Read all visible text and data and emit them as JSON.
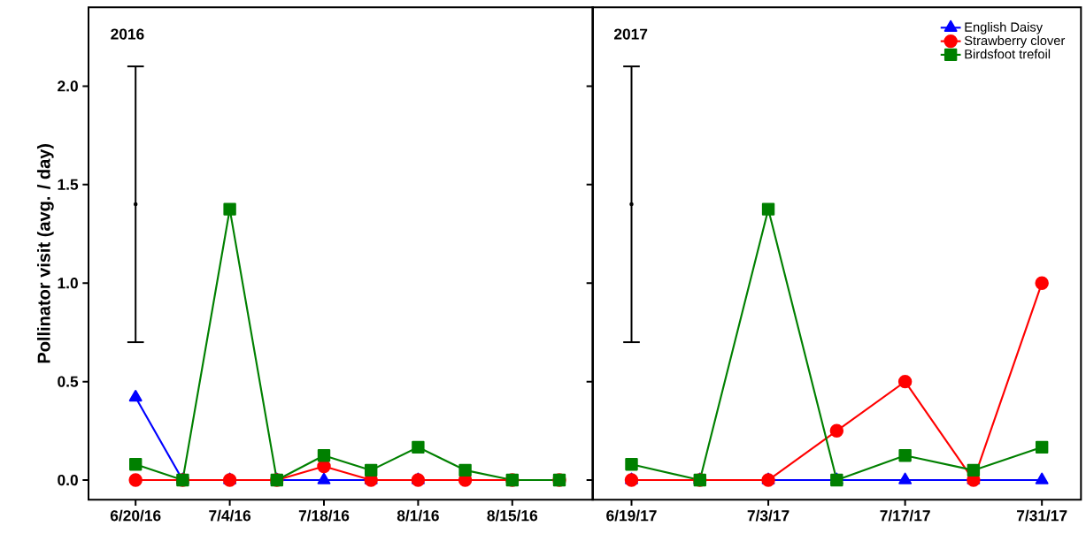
{
  "chart_data": [
    {
      "type": "line",
      "ylabel": "Pollinator visit (avg. / day)",
      "annotations": [
        "2016"
      ],
      "xlim": [
        "2016-06-13",
        "2016-08-27"
      ],
      "ylim": [
        -0.1,
        2.4
      ],
      "xticks": [
        {
          "value": "2016-06-20",
          "label": "6/20/16"
        },
        {
          "value": "2016-07-04",
          "label": "7/4/16"
        },
        {
          "value": "2016-07-18",
          "label": "7/18/16"
        },
        {
          "value": "2016-08-01",
          "label": "8/1/16"
        },
        {
          "value": "2016-08-15",
          "label": "8/15/16"
        }
      ],
      "yticks": [
        {
          "value": 0,
          "label": "0.0"
        },
        {
          "value": 0.5,
          "label": "0.5"
        },
        {
          "value": 1.0,
          "label": "1.0"
        },
        {
          "value": 1.5,
          "label": "1.5"
        },
        {
          "value": 2.0,
          "label": "2.0"
        }
      ],
      "x": [
        "2016-06-20",
        "2016-06-27",
        "2016-07-04",
        "2016-07-11",
        "2016-07-18",
        "2016-07-25",
        "2016-08-01",
        "2016-08-08",
        "2016-08-15",
        "2016-08-22"
      ],
      "grid": false,
      "legend": false,
      "series": [
        {
          "color": "#0000ff",
          "marker": "triangle",
          "values": [
            0.42,
            0,
            0,
            0,
            0,
            0,
            0,
            null,
            null,
            null
          ]
        },
        {
          "color": "#ff0000",
          "marker": "circle",
          "values": [
            0,
            0,
            0,
            0,
            0.07,
            0,
            0,
            0,
            0,
            0
          ]
        },
        {
          "color": "#008000",
          "marker": "square",
          "values": [
            0.08,
            0,
            1.375,
            0,
            0.125,
            0.05,
            0.167,
            0.05,
            0,
            0
          ]
        },
        {
          "color": "#000000",
          "marker": "none",
          "x": [
            "2016-06-20"
          ],
          "values": [
            1.4
          ],
          "errors": [
            0.7
          ]
        }
      ]
    },
    {
      "type": "line",
      "annotations": [
        "2017"
      ],
      "tick_labels": "x",
      "xlim": [
        "2017-06-15",
        "2017-08-04"
      ],
      "ylim": [
        -0.1,
        2.4
      ],
      "xticks": [
        {
          "value": "2017-06-19",
          "label": "6/19/17"
        },
        {
          "value": "2017-07-03",
          "label": "7/3/17"
        },
        {
          "value": "2017-07-17",
          "label": "7/17/17"
        },
        {
          "value": "2017-07-31",
          "label": "7/31/17"
        }
      ],
      "yticks": [
        {
          "value": 0,
          "label": null
        },
        {
          "value": 0.5,
          "label": null
        },
        {
          "value": 1.0,
          "label": null
        },
        {
          "value": 1.5,
          "label": null
        },
        {
          "value": 2.0,
          "label": null
        }
      ],
      "x": [
        "2017-06-19",
        "2017-06-26",
        "2017-07-03",
        "2017-07-10",
        "2017-07-17",
        "2017-07-24",
        "2017-07-31"
      ],
      "grid": false,
      "legend": "top right",
      "series": [
        {
          "name": "English Daisy",
          "color": "#0000ff",
          "marker": "triangle",
          "values": [
            0,
            0,
            0,
            0,
            0,
            0,
            0
          ]
        },
        {
          "name": "Strawberry clover",
          "color": "#ff0000",
          "marker": "circle",
          "values": [
            0,
            0,
            0,
            0.25,
            0.5,
            0,
            1.0
          ]
        },
        {
          "name": "Birdsfoot trefoil",
          "color": "#008000",
          "marker": "square",
          "values": [
            0.08,
            0,
            1.375,
            0,
            0.125,
            0.05,
            0.167
          ]
        },
        {
          "color": "#000000",
          "marker": "none",
          "x": [
            "2017-06-19"
          ],
          "values": [
            1.4
          ],
          "errors": [
            0.7
          ]
        }
      ]
    }
  ]
}
